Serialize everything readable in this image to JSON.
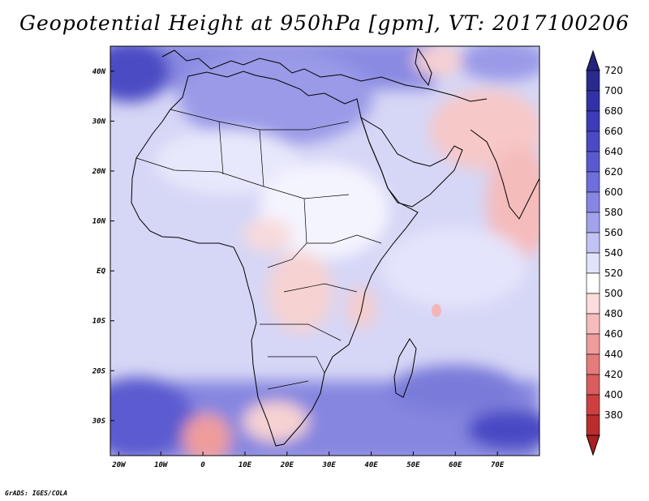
{
  "title": "Geopotential Height at 950hPa [gpm], VT: 2017100206",
  "credit": "GrADS: IGES/COLA",
  "map": {
    "variable": "Geopotential Height",
    "level": "950hPa",
    "units": "gpm",
    "valid_time": "2017100206",
    "lon_range": [
      -22,
      80
    ],
    "lat_range": [
      -37,
      45
    ],
    "x_ticks": [
      {
        "lon": -20,
        "label": "20W"
      },
      {
        "lon": -10,
        "label": "10W"
      },
      {
        "lon": 0,
        "label": "0"
      },
      {
        "lon": 10,
        "label": "10E"
      },
      {
        "lon": 20,
        "label": "20E"
      },
      {
        "lon": 30,
        "label": "30E"
      },
      {
        "lon": 40,
        "label": "40E"
      },
      {
        "lon": 50,
        "label": "50E"
      },
      {
        "lon": 60,
        "label": "60E"
      },
      {
        "lon": 70,
        "label": "70E"
      }
    ],
    "y_ticks": [
      {
        "lat": 40,
        "label": "40N"
      },
      {
        "lat": 30,
        "label": "30N"
      },
      {
        "lat": 20,
        "label": "20N"
      },
      {
        "lat": 10,
        "label": "10N"
      },
      {
        "lat": 0,
        "label": "EQ"
      },
      {
        "lat": -10,
        "label": "10S"
      },
      {
        "lat": -20,
        "label": "20S"
      },
      {
        "lat": -30,
        "label": "30S"
      }
    ]
  },
  "colorbar": {
    "levels": [
      {
        "label": "720",
        "color": "#2a2a8e"
      },
      {
        "label": "700",
        "color": "#3232a8"
      },
      {
        "label": "680",
        "color": "#3c3cb8"
      },
      {
        "label": "660",
        "color": "#4a4ac4"
      },
      {
        "label": "640",
        "color": "#5a5ad0"
      },
      {
        "label": "620",
        "color": "#6e6edc"
      },
      {
        "label": "600",
        "color": "#8686e4"
      },
      {
        "label": "580",
        "color": "#a2a2ec"
      },
      {
        "label": "560",
        "color": "#c2c2f4"
      },
      {
        "label": "540",
        "color": "#e2e2fa"
      },
      {
        "label": "520",
        "color": "#ffffff"
      },
      {
        "label": "500",
        "color": "#fcdcdc"
      },
      {
        "label": "480",
        "color": "#f6bcbc"
      },
      {
        "label": "460",
        "color": "#ee9c9c"
      },
      {
        "label": "440",
        "color": "#e47c7c"
      },
      {
        "label": "420",
        "color": "#da5c5c"
      },
      {
        "label": "400",
        "color": "#ce4040"
      },
      {
        "label": "380",
        "color": "#bc2c2c"
      }
    ],
    "top_cap_color": "#24247e",
    "bottom_cap_color": "#a82020"
  }
}
